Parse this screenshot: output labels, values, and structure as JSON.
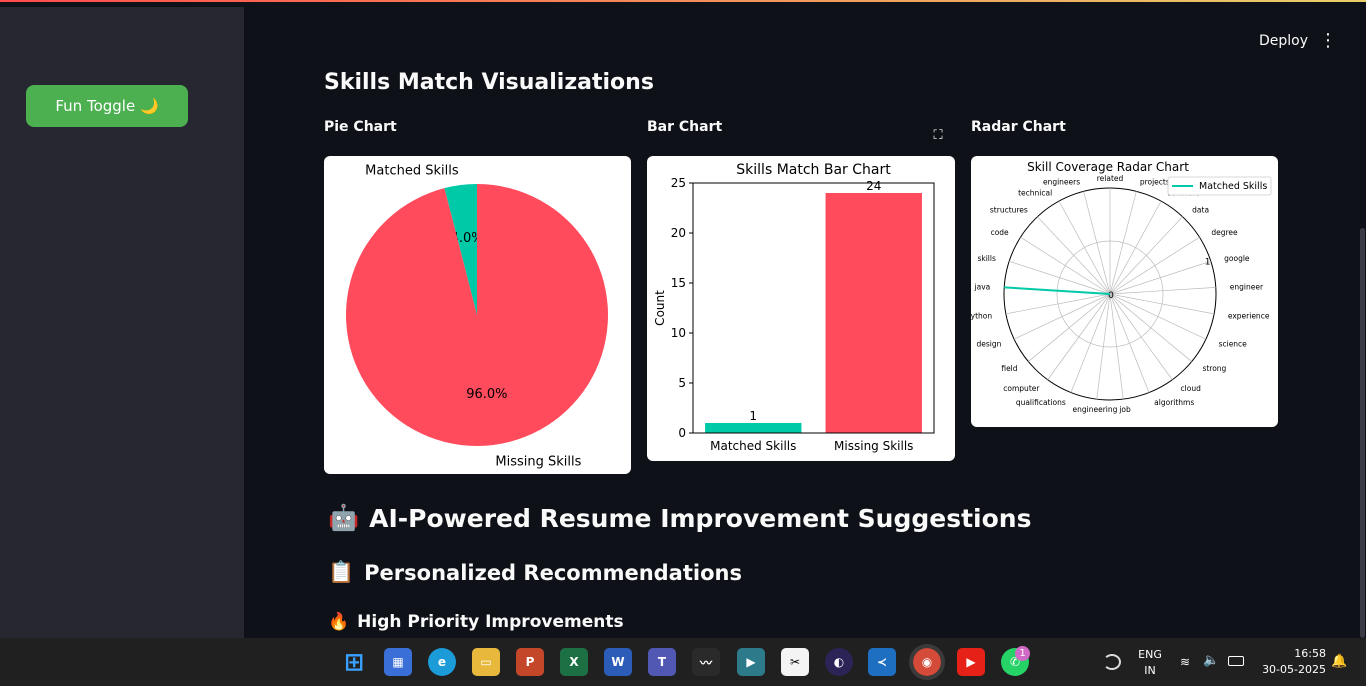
{
  "sidebar": {
    "fun_toggle_label": "Fun Toggle 🌙"
  },
  "header": {
    "deploy_label": "Deploy",
    "menu_glyph": "⋮"
  },
  "main": {
    "title": "Skills Match Visualizations",
    "pie_label": "Pie Chart",
    "bar_label": "Bar Chart",
    "radar_label": "Radar Chart",
    "expand_glyph": "⛶",
    "ai_heading": "AI-Powered Resume Improvement Suggestions",
    "ai_emoji": "🤖",
    "recs_heading": "Personalized Recommendations",
    "recs_emoji": "📋",
    "priority_heading": "High Priority Improvements",
    "priority_emoji": "🔥"
  },
  "chart_data": [
    {
      "type": "pie",
      "title": "",
      "categories": [
        "Matched Skills",
        "Missing Skills"
      ],
      "values": [
        4.0,
        96.0
      ],
      "labels": [
        "4.0%",
        "96.0%"
      ],
      "colors": [
        "#00c9a7",
        "#ff4b5c"
      ]
    },
    {
      "type": "bar",
      "title": "Skills Match Bar Chart",
      "categories": [
        "Matched Skills",
        "Missing Skills"
      ],
      "values": [
        1,
        24
      ],
      "colors": [
        "#00c9a7",
        "#ff4b5c"
      ],
      "xlabel": "",
      "ylabel": "Count",
      "ylim": [
        0,
        25
      ],
      "yticks": [
        0,
        5,
        10,
        15,
        20,
        25
      ]
    },
    {
      "type": "radar",
      "title": "Skill Coverage Radar Chart",
      "categories": [
        "related",
        "projects",
        "software",
        "data",
        "degree",
        "google",
        "engineer",
        "experience",
        "science",
        "strong",
        "cloud",
        "algorithms",
        "job",
        "engineering",
        "qualifications",
        "computer",
        "field",
        "design",
        "python",
        "java",
        "skills",
        "code",
        "structures",
        "technical",
        "engineers"
      ],
      "series": [
        {
          "name": "Matched Skills",
          "values": [
            0,
            0,
            0,
            0,
            0,
            0,
            0,
            0,
            0,
            0,
            0,
            0,
            0,
            0,
            0,
            0,
            0,
            0,
            0,
            1,
            0,
            0,
            0,
            0,
            0
          ],
          "color": "#00c9a7"
        }
      ],
      "rticks": [
        "0",
        "1"
      ],
      "legend": "top-right"
    }
  ],
  "taskbar": {
    "apps": [
      "start",
      "store",
      "edge",
      "explorer",
      "powerpoint",
      "excel",
      "word",
      "teams",
      "audio",
      "media",
      "capcut",
      "eclipse",
      "vscode",
      "chrome",
      "youtube",
      "whatsapp"
    ],
    "whatsapp_badge": "1",
    "lang": "ENG",
    "region": "IN",
    "time": "16:58",
    "date": "30-05-2025"
  }
}
